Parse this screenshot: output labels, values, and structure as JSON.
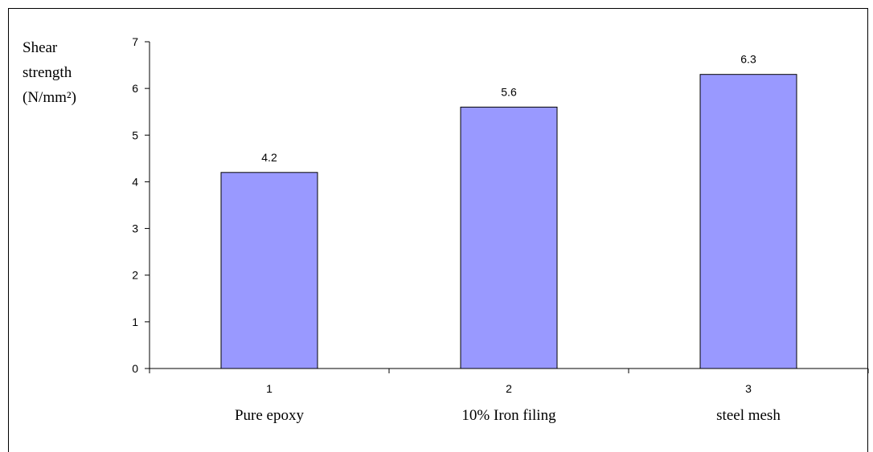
{
  "chart_data": {
    "type": "bar",
    "title": "",
    "ylabel_lines": [
      "Shear",
      "strength",
      "(N/mm²)"
    ],
    "xlabel": "",
    "x_ticks": [
      "1",
      "2",
      "3"
    ],
    "categories": [
      "Pure epoxy",
      "10% Iron filing",
      "steel mesh"
    ],
    "values": [
      4.2,
      5.6,
      6.3
    ],
    "data_labels": [
      "4.2",
      "5.6",
      "6.3"
    ],
    "ylim": [
      0,
      7
    ],
    "yticks": [
      0,
      1,
      2,
      3,
      4,
      5,
      6,
      7
    ],
    "grid": false,
    "legend": "none",
    "bar_color": "#9999ff",
    "bar_edge_color": "#000000"
  }
}
